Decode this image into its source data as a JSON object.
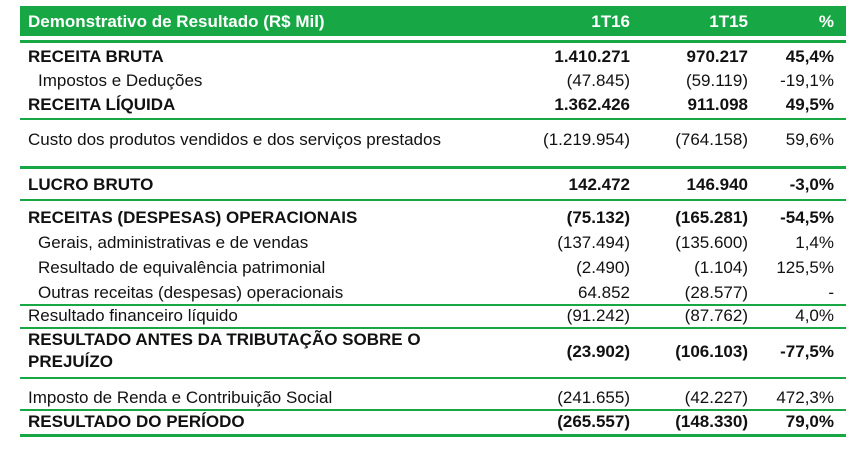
{
  "header": {
    "title": "Demonstrativo de Resultado (R$ Mil)",
    "col1": "1T16",
    "col2": "1T15",
    "col3": "%"
  },
  "rows": [
    {
      "label": "RECEITA BRUTA",
      "v1": "1.410.271",
      "v2": "970.217",
      "v3": "45,4%"
    },
    {
      "label": "Impostos e Deduções",
      "v1": "(47.845)",
      "v2": "(59.119)",
      "v3": "-19,1%"
    },
    {
      "label": "RECEITA LÍQUIDA",
      "v1": "1.362.426",
      "v2": "911.098",
      "v3": "49,5%"
    },
    {
      "label": "Custo dos produtos vendidos e dos serviços prestados",
      "v1": "(1.219.954)",
      "v2": "(764.158)",
      "v3": "59,6%"
    },
    {
      "label": "LUCRO BRUTO",
      "v1": "142.472",
      "v2": "146.940",
      "v3": "-3,0%"
    },
    {
      "label": "RECEITAS (DESPESAS) OPERACIONAIS",
      "v1": "(75.132)",
      "v2": "(165.281)",
      "v3": "-54,5%"
    },
    {
      "label": "Gerais, administrativas e de vendas",
      "v1": "(137.494)",
      "v2": "(135.600)",
      "v3": "1,4%"
    },
    {
      "label": "Resultado de equivalência patrimonial",
      "v1": "(2.490)",
      "v2": "(1.104)",
      "v3": "125,5%"
    },
    {
      "label": "Outras receitas (despesas) operacionais",
      "v1": "64.852",
      "v2": "(28.577)",
      "v3": "-"
    },
    {
      "label": "Resultado financeiro líquido",
      "v1": "(91.242)",
      "v2": "(87.762)",
      "v3": "4,0%"
    },
    {
      "label_line1": "RESULTADO ANTES DA TRIBUTAÇÃO SOBRE O",
      "label_line2": "PREJUÍZO",
      "v1": "(23.902)",
      "v2": "(106.103)",
      "v3": "-77,5%"
    },
    {
      "label": "Imposto de Renda e Contribuição Social",
      "v1": "(241.655)",
      "v2": "(42.227)",
      "v3": "472,3%"
    },
    {
      "label": "RESULTADO DO PERÍODO",
      "v1": "(265.557)",
      "v2": "(148.330)",
      "v3": "79,0%"
    }
  ]
}
